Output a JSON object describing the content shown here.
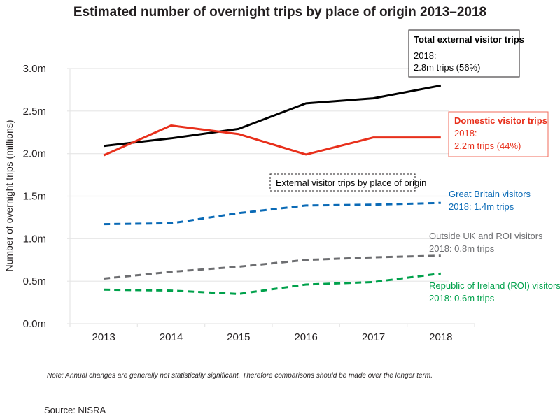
{
  "chart_data": {
    "type": "line",
    "title": "Estimated number of overnight trips by place of origin 2013–2018",
    "xlabel": "",
    "ylabel": "Number of overnight trips (millions)",
    "categories": [
      "2013",
      "2014",
      "2015",
      "2016",
      "2017",
      "2018"
    ],
    "ylim": [
      0,
      3.0
    ],
    "yticks": [
      0.0,
      0.5,
      1.0,
      1.5,
      2.0,
      2.5,
      3.0
    ],
    "ytick_labels": [
      "0.0m",
      "0.5m",
      "1.0m",
      "1.5m",
      "2.0m",
      "2.5m",
      "3.0m"
    ],
    "grid": true,
    "series": [
      {
        "name": "Total external visitor trips",
        "style": "solid",
        "color": "#000000",
        "values": [
          2.09,
          2.18,
          2.29,
          2.59,
          2.65,
          2.8
        ]
      },
      {
        "name": "Domestic visitor trips",
        "style": "solid",
        "color": "#e8301c",
        "values": [
          1.98,
          2.33,
          2.23,
          1.99,
          2.19,
          2.19
        ]
      },
      {
        "name": "Great Britain visitors",
        "style": "dashed",
        "color": "#0a6ab6",
        "values": [
          1.17,
          1.18,
          1.3,
          1.39,
          1.4,
          1.42
        ]
      },
      {
        "name": "Outside UK and ROI visitors",
        "style": "dashed",
        "color": "#6d6e71",
        "values": [
          0.53,
          0.61,
          0.67,
          0.75,
          0.78,
          0.8
        ]
      },
      {
        "name": "Republic of Ireland (ROI) visitors",
        "style": "dashed",
        "color": "#00a14b",
        "values": [
          0.4,
          0.39,
          0.35,
          0.46,
          0.49,
          0.59
        ]
      }
    ],
    "annotations": {
      "total": {
        "title": "Total external visitor trips",
        "line1": "2018:",
        "line2": "2.8m trips (56%)"
      },
      "domestic": {
        "title": "Domestic visitor trips",
        "line1": "2018:",
        "line2": "2.2m trips (44%)"
      },
      "external_group": "External visitor trips by place of origin",
      "gb": {
        "line1": "Great Britain visitors",
        "line2": "2018: 1.4m trips"
      },
      "outside": {
        "line1": "Outside UK and ROI visitors",
        "line2": "2018: 0.8m trips"
      },
      "roi": {
        "line1": "Republic of Ireland (ROI) visitors",
        "line2": "2018: 0.6m trips"
      }
    }
  },
  "footer": {
    "note": "Note: Annual changes are generally not statistically significant. Therefore comparisons should be made over the longer term.",
    "source": "Source: NISRA"
  },
  "colors": {
    "total": "#000000",
    "domestic": "#e8301c",
    "gb": "#0a6ab6",
    "outside": "#6d6e71",
    "roi": "#00a14b",
    "grid": "#e6e6e6"
  }
}
